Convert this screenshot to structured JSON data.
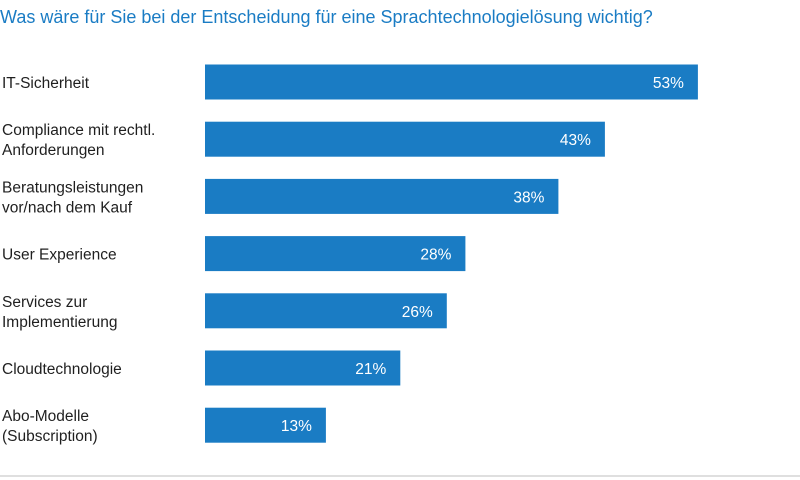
{
  "chart_data": {
    "type": "bar",
    "orientation": "horizontal",
    "title": "Was wäre für Sie bei der Entscheidung für eine Sprachtechnologielösung wichtig?",
    "categories": [
      [
        "IT-Sicherheit"
      ],
      [
        "Compliance mit rechtl.",
        "Anforderungen"
      ],
      [
        "Beratungsleistungen",
        "vor/nach dem Kauf"
      ],
      [
        "User Experience"
      ],
      [
        "Services zur",
        "Implementierung"
      ],
      [
        "Cloudtechnologie"
      ],
      [
        "Abo-Modelle",
        "(Subscription)"
      ]
    ],
    "values": [
      53,
      43,
      38,
      28,
      26,
      21,
      13
    ],
    "value_labels": [
      "53%",
      "43%",
      "38%",
      "28%",
      "26%",
      "21%",
      "13%"
    ],
    "unit": "%",
    "xlim": [
      0,
      100
    ],
    "grid": false,
    "legend": "none",
    "colors": {
      "bar": "#1a7cc4",
      "title": "#1a7cc4",
      "label": "#1f1f1f",
      "value_text": "#ffffff",
      "baseline": "#bfbfbf"
    }
  }
}
